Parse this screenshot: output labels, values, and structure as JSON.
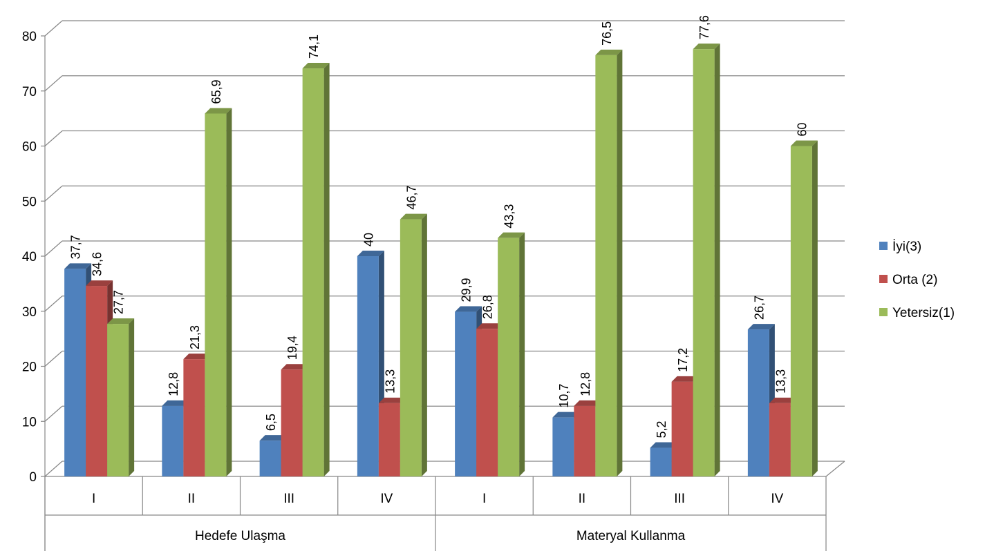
{
  "chart_data": {
    "type": "bar",
    "title": "",
    "xlabel": "",
    "ylabel": "",
    "ylim": [
      0,
      80
    ],
    "yticks": [
      0,
      10,
      20,
      30,
      40,
      50,
      60,
      70,
      80
    ],
    "grid": true,
    "legend_position": "right",
    "groups": [
      {
        "label": "Hedefe Ulaşma",
        "categories": [
          "I",
          "II",
          "III",
          "IV"
        ]
      },
      {
        "label": "Materyal Kullanma",
        "categories": [
          "I",
          "II",
          "III",
          "IV"
        ]
      }
    ],
    "series": [
      {
        "name": "İyi(3)",
        "color": "#4F81BD",
        "values": [
          37.7,
          12.8,
          6.5,
          40,
          29.9,
          10.7,
          5.2,
          26.7
        ],
        "labels": [
          "37,7",
          "12,8",
          "6,5",
          "40",
          "29,9",
          "10,7",
          "5,2",
          "26,7"
        ]
      },
      {
        "name": "Orta (2)",
        "color": "#C0504D",
        "values": [
          34.6,
          21.3,
          19.4,
          13.3,
          26.8,
          12.8,
          17.2,
          13.3
        ],
        "labels": [
          "34,6",
          "21,3",
          "19,4",
          "13,3",
          "26,8",
          "12,8",
          "17,2",
          "13,3"
        ]
      },
      {
        "name": "Yetersiz(1)",
        "color": "#9BBB59",
        "values": [
          27.7,
          65.9,
          74.1,
          46.7,
          43.3,
          76.5,
          77.6,
          60
        ],
        "labels": [
          "27,7",
          "65,9",
          "74,1",
          "46,7",
          "43,3",
          "76,5",
          "77,6",
          "60"
        ]
      }
    ]
  }
}
